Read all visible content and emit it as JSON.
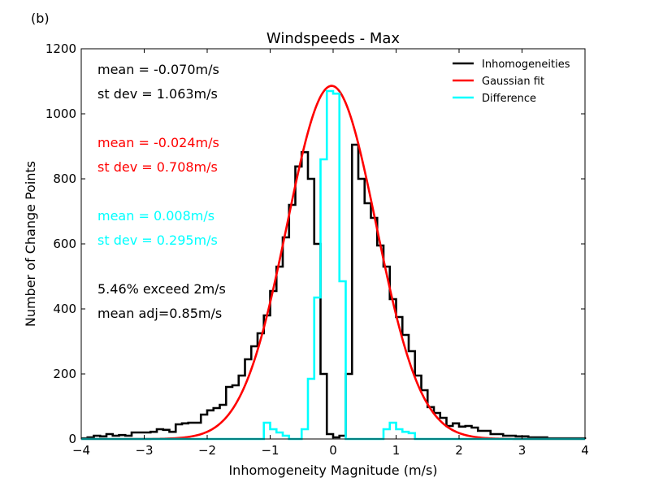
{
  "panel_label": "(b)",
  "chart_data": {
    "type": "line",
    "title": "Windspeeds - Max",
    "xlabel": "Inhomogeneity Magnitude (m/s)",
    "ylabel": "Number of Change Points",
    "xlim": [
      -4,
      4
    ],
    "ylim": [
      0,
      1200
    ],
    "x_ticks": [
      -4,
      -3,
      -2,
      -1,
      0,
      1,
      2,
      3,
      4
    ],
    "x_tick_labels": [
      "−4",
      "−3",
      "−2",
      "−1",
      "0",
      "1",
      "2",
      "3",
      "4"
    ],
    "y_ticks": [
      0,
      200,
      400,
      600,
      800,
      1000,
      1200
    ],
    "y_tick_labels": [
      "0",
      "200",
      "400",
      "600",
      "800",
      "1000",
      "1200"
    ],
    "grid": false,
    "legend_position": "top-right",
    "legend": [
      {
        "label": "Inhomogeneities",
        "color": "#000000"
      },
      {
        "label": "Gaussian fit",
        "color": "#ff0000"
      },
      {
        "label": "Difference",
        "color": "#00ffff"
      }
    ],
    "bin_width": 0.1,
    "series": [
      {
        "name": "Inhomogeneities",
        "kind": "step",
        "color": "#000000",
        "x": [
          -4.0,
          -3.9,
          -3.8,
          -3.7,
          -3.6,
          -3.5,
          -3.4,
          -3.3,
          -3.2,
          -3.1,
          -3.0,
          -2.9,
          -2.8,
          -2.7,
          -2.6,
          -2.5,
          -2.4,
          -2.3,
          -2.2,
          -2.1,
          -2.0,
          -1.9,
          -1.8,
          -1.7,
          -1.6,
          -1.5,
          -1.4,
          -1.3,
          -1.2,
          -1.1,
          -1.0,
          -0.9,
          -0.8,
          -0.7,
          -0.6,
          -0.5,
          -0.4,
          -0.3,
          -0.2,
          -0.1,
          0.0,
          0.1,
          0.2,
          0.3,
          0.4,
          0.5,
          0.6,
          0.7,
          0.8,
          0.9,
          1.0,
          1.1,
          1.2,
          1.3,
          1.4,
          1.5,
          1.6,
          1.7,
          1.8,
          1.9,
          2.0,
          2.1,
          2.2,
          2.3,
          2.4,
          2.5,
          2.6,
          2.7,
          2.8,
          2.9,
          3.0,
          3.1,
          3.2,
          3.3,
          3.4,
          3.5,
          3.6,
          3.7,
          3.8,
          3.9,
          4.0
        ],
        "y": [
          2,
          5,
          10,
          8,
          15,
          10,
          12,
          10,
          20,
          20,
          20,
          22,
          30,
          28,
          22,
          45,
          48,
          50,
          50,
          75,
          88,
          95,
          105,
          160,
          165,
          195,
          245,
          285,
          325,
          380,
          455,
          530,
          620,
          720,
          838,
          882,
          800,
          600,
          200,
          15,
          5,
          10,
          200,
          905,
          800,
          725,
          680,
          595,
          530,
          430,
          375,
          320,
          270,
          195,
          150,
          98,
          80,
          65,
          40,
          48,
          38,
          40,
          35,
          25,
          25,
          15,
          15,
          10,
          10,
          8,
          8,
          5,
          5,
          5,
          2,
          2,
          2,
          2,
          2,
          2,
          0
        ]
      },
      {
        "name": "Gaussian fit",
        "kind": "curve",
        "color": "#ff0000",
        "mean": -0.024,
        "st_dev": 0.708,
        "peak": 1086
      },
      {
        "name": "Difference",
        "kind": "step",
        "color": "#00ffff",
        "x": [
          -4.0,
          -3.9,
          -3.8,
          -3.7,
          -3.6,
          -3.5,
          -3.4,
          -3.3,
          -3.2,
          -3.1,
          -3.0,
          -2.9,
          -2.8,
          -2.7,
          -2.6,
          -2.5,
          -2.4,
          -2.3,
          -2.2,
          -2.1,
          -2.0,
          -1.9,
          -1.8,
          -1.7,
          -1.6,
          -1.5,
          -1.4,
          -1.3,
          -1.2,
          -1.1,
          -1.0,
          -0.9,
          -0.8,
          -0.7,
          -0.6,
          -0.5,
          -0.4,
          -0.3,
          -0.2,
          -0.1,
          0.0,
          0.1,
          0.2,
          0.3,
          0.4,
          0.5,
          0.6,
          0.7,
          0.8,
          0.9,
          1.0,
          1.1,
          1.2,
          1.3,
          1.4,
          1.5,
          1.6,
          1.7,
          1.8,
          1.9,
          2.0,
          2.1,
          2.2,
          2.3,
          2.4,
          2.5,
          2.6,
          2.7,
          2.8,
          2.9,
          3.0,
          3.1,
          3.2,
          3.3,
          3.4,
          3.5,
          3.6,
          3.7,
          3.8,
          3.9,
          4.0
        ],
        "y": [
          0,
          0,
          0,
          0,
          0,
          0,
          0,
          0,
          0,
          0,
          0,
          0,
          0,
          0,
          0,
          0,
          0,
          0,
          0,
          0,
          0,
          0,
          0,
          0,
          0,
          0,
          0,
          0,
          0,
          50,
          30,
          20,
          10,
          0,
          0,
          30,
          185,
          435,
          860,
          1070,
          1062,
          485,
          0,
          0,
          0,
          0,
          0,
          0,
          30,
          50,
          30,
          22,
          18,
          0,
          0,
          0,
          0,
          0,
          0,
          0,
          0,
          0,
          0,
          0,
          0,
          0,
          0,
          0,
          0,
          0,
          0,
          0,
          0,
          0,
          0,
          0,
          0,
          0,
          0,
          0,
          0
        ]
      }
    ],
    "annotations": [
      {
        "text": "mean = -0.070m/s",
        "color": "#000000"
      },
      {
        "text": "st dev =  1.063m/s",
        "color": "#000000"
      },
      {
        "text": "mean = -0.024m/s",
        "color": "#ff0000"
      },
      {
        "text": "st dev =  0.708m/s",
        "color": "#ff0000"
      },
      {
        "text": "mean =  0.008m/s",
        "color": "#00ffff"
      },
      {
        "text": "st dev =  0.295m/s",
        "color": "#00ffff"
      },
      {
        "text": "5.46% exceed 2m/s",
        "color": "#000000"
      },
      {
        "text": "mean adj=0.85m/s",
        "color": "#000000"
      }
    ]
  }
}
